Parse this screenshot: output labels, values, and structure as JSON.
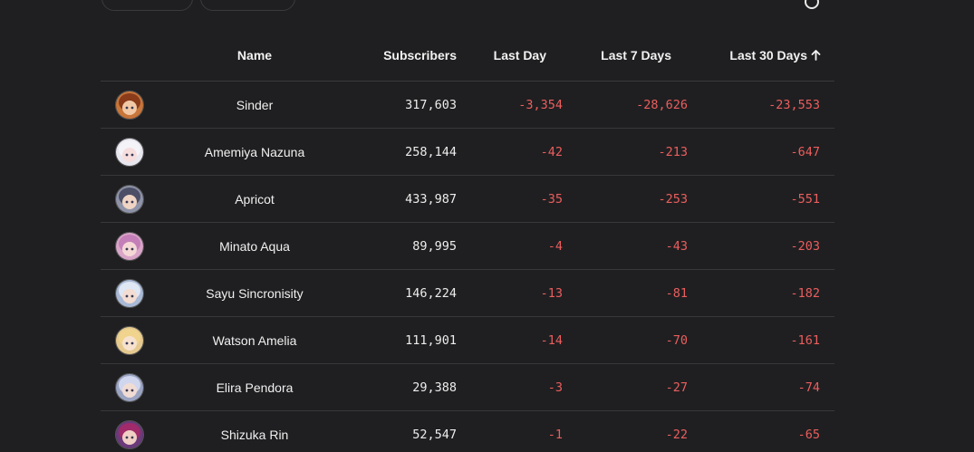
{
  "table": {
    "columns": {
      "name": "Name",
      "subscribers": "Subscribers",
      "last_day": "Last Day",
      "last_7_days": "Last 7 Days",
      "last_30_days": "Last 30 Days"
    },
    "sort_icon": "arrow-up-icon",
    "rows": [
      {
        "name": "Sinder",
        "subscribers": "317,603",
        "last_day": "-3,354",
        "last_7_days": "-28,626",
        "last_30_days": "-23,553"
      },
      {
        "name": "Amemiya Nazuna",
        "subscribers": "258,144",
        "last_day": "-42",
        "last_7_days": "-213",
        "last_30_days": "-647"
      },
      {
        "name": "Apricot",
        "subscribers": "433,987",
        "last_day": "-35",
        "last_7_days": "-253",
        "last_30_days": "-551"
      },
      {
        "name": "Minato Aqua",
        "subscribers": "89,995",
        "last_day": "-4",
        "last_7_days": "-43",
        "last_30_days": "-203"
      },
      {
        "name": "Sayu Sincronisity",
        "subscribers": "146,224",
        "last_day": "-13",
        "last_7_days": "-81",
        "last_30_days": "-182"
      },
      {
        "name": "Watson Amelia",
        "subscribers": "111,901",
        "last_day": "-14",
        "last_7_days": "-70",
        "last_30_days": "-161"
      },
      {
        "name": "Elira Pendora",
        "subscribers": "29,388",
        "last_day": "-3",
        "last_7_days": "-27",
        "last_30_days": "-74"
      },
      {
        "name": "Shizuka Rin",
        "subscribers": "52,547",
        "last_day": "-1",
        "last_7_days": "-22",
        "last_30_days": "-65"
      }
    ]
  },
  "colors": {
    "background": "#1f1f21",
    "negative": "#ec5e5e",
    "divider": "#38383b",
    "text": "#f0f0f0"
  }
}
